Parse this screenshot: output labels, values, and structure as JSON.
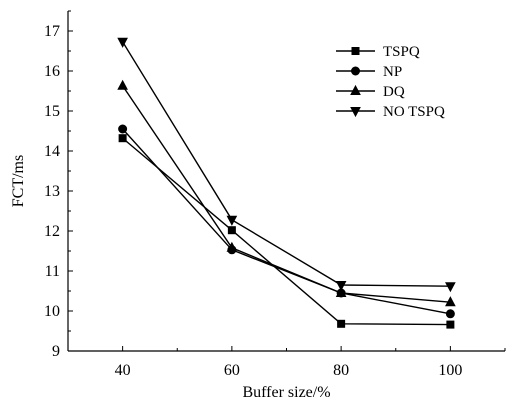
{
  "chart_data": {
    "type": "line",
    "title": "",
    "xlabel": "Buffer size/%",
    "ylabel": "FCT/ms",
    "x": [
      40,
      60,
      80,
      100
    ],
    "xlim": [
      30,
      110
    ],
    "ylim": [
      9,
      17.5
    ],
    "xticks": [
      "40",
      "60",
      "80",
      "100"
    ],
    "yticks": [
      "9",
      "10",
      "11",
      "12",
      "13",
      "14",
      "15",
      "16",
      "17"
    ],
    "grid": false,
    "legend_position": "top-right",
    "series": [
      {
        "name": "TSPQ",
        "marker": "square",
        "values": [
          14.32,
          12.02,
          9.68,
          9.66
        ]
      },
      {
        "name": "NP",
        "marker": "circle",
        "values": [
          14.55,
          11.53,
          10.45,
          9.93
        ]
      },
      {
        "name": "DQ",
        "marker": "triangle-up",
        "values": [
          15.63,
          11.58,
          10.45,
          10.22
        ]
      },
      {
        "name": "NO TSPQ",
        "marker": "triangle-down",
        "values": [
          16.73,
          12.28,
          10.65,
          10.62
        ]
      }
    ]
  }
}
